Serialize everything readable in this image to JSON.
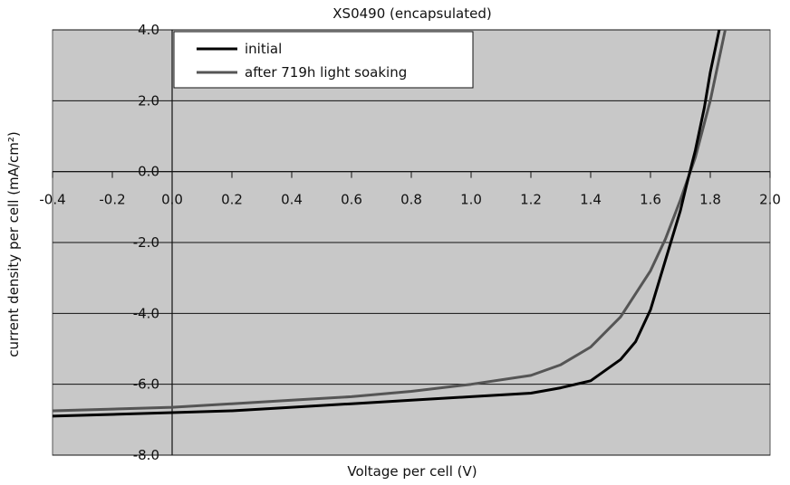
{
  "chart_data": {
    "type": "line",
    "title": "XS0490 (encapsulated)",
    "xlabel": "Voltage per cell (V)",
    "ylabel": "current density per cell (mA/cm²)",
    "xlim": [
      -0.4,
      2.0
    ],
    "ylim": [
      -8.0,
      4.0
    ],
    "x_ticks": [
      "-0.4",
      "-0.2",
      "0.0",
      "0.2",
      "0.4",
      "0.6",
      "0.8",
      "1.0",
      "1.2",
      "1.4",
      "1.6",
      "1.8",
      "2.0"
    ],
    "y_ticks": [
      "-8.0",
      "-6.0",
      "-4.0",
      "-2.0",
      "0.0",
      "2.0",
      "4.0"
    ],
    "grid": "horizontal",
    "legend_position": "top-left",
    "colors": {
      "background": "#c8c8c8",
      "initial": "#000000",
      "soaked": "#555555"
    },
    "series": [
      {
        "name": "initial",
        "x": [
          -0.4,
          -0.2,
          0.0,
          0.2,
          0.4,
          0.6,
          0.8,
          1.0,
          1.2,
          1.3,
          1.4,
          1.5,
          1.55,
          1.6,
          1.65,
          1.7,
          1.72,
          1.75,
          1.78,
          1.8,
          1.83
        ],
        "y": [
          -6.9,
          -6.85,
          -6.8,
          -6.75,
          -6.65,
          -6.55,
          -6.45,
          -6.35,
          -6.25,
          -6.1,
          -5.9,
          -5.3,
          -4.8,
          -3.9,
          -2.5,
          -1.1,
          -0.4,
          0.6,
          1.8,
          2.8,
          4.0
        ]
      },
      {
        "name": "after 719h light soaking",
        "x": [
          -0.4,
          -0.2,
          0.0,
          0.2,
          0.4,
          0.6,
          0.8,
          1.0,
          1.2,
          1.3,
          1.4,
          1.5,
          1.6,
          1.65,
          1.7,
          1.75,
          1.8,
          1.85
        ],
        "y": [
          -6.75,
          -6.7,
          -6.65,
          -6.55,
          -6.45,
          -6.35,
          -6.2,
          -6.0,
          -5.75,
          -5.45,
          -4.95,
          -4.1,
          -2.8,
          -1.9,
          -0.8,
          0.4,
          2.0,
          4.0
        ]
      }
    ]
  }
}
